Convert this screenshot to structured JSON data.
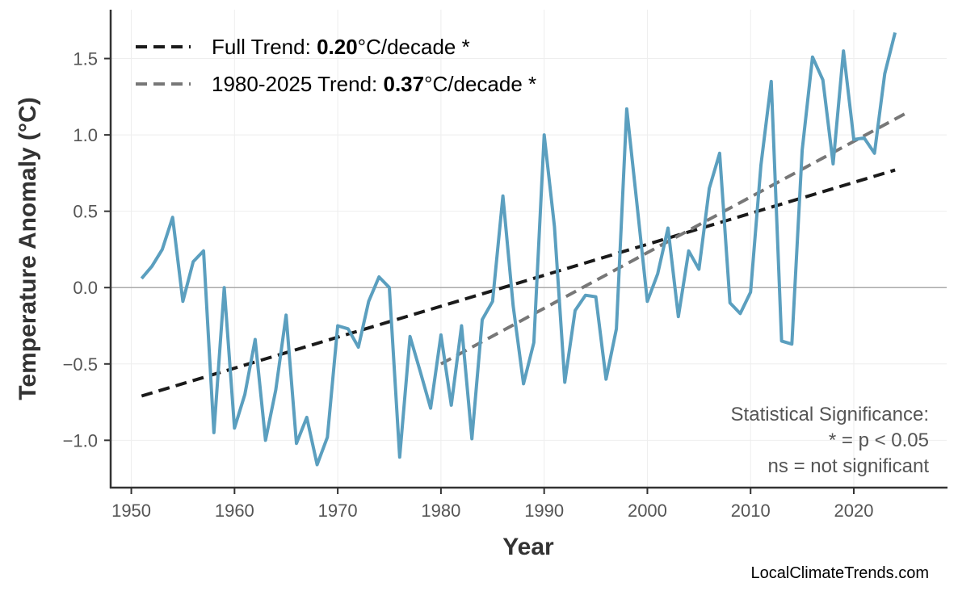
{
  "chart_data": {
    "type": "line",
    "xlabel": "Year",
    "ylabel": "Temperature Anomaly (°C)",
    "xlim": [
      1948,
      2029
    ],
    "ylim": [
      -1.31,
      1.82
    ],
    "xticks": [
      1950,
      1960,
      1970,
      1980,
      1990,
      2000,
      2010,
      2020
    ],
    "yticks": [
      -1.0,
      -0.5,
      0.0,
      0.5,
      1.0,
      1.5
    ],
    "ytick_labels": [
      "−1.0",
      "−0.5",
      "0.0",
      "0.5",
      "1.0",
      "1.5"
    ],
    "grid": true,
    "zero_line": true,
    "series": [
      {
        "color": "#5b9fbf",
        "x": [
          1951,
          1952,
          1953,
          1954,
          1955,
          1956,
          1957,
          1958,
          1959,
          1960,
          1961,
          1962,
          1963,
          1964,
          1965,
          1966,
          1967,
          1968,
          1969,
          1970,
          1971,
          1972,
          1973,
          1974,
          1975,
          1976,
          1977,
          1978,
          1979,
          1980,
          1981,
          1982,
          1983,
          1984,
          1985,
          1986,
          1987,
          1988,
          1989,
          1990,
          1991,
          1992,
          1993,
          1994,
          1995,
          1996,
          1997,
          1998,
          1999,
          2000,
          2001,
          2002,
          2003,
          2004,
          2005,
          2006,
          2007,
          2008,
          2009,
          2010,
          2011,
          2012,
          2013,
          2014,
          2015,
          2016,
          2017,
          2018,
          2019,
          2020,
          2021,
          2022,
          2023,
          2024
        ],
        "y": [
          0.06,
          0.14,
          0.25,
          0.46,
          -0.09,
          0.17,
          0.24,
          -0.95,
          0.0,
          -0.92,
          -0.7,
          -0.34,
          -1.0,
          -0.67,
          -0.18,
          -1.02,
          -0.85,
          -1.16,
          -0.98,
          -0.25,
          -0.27,
          -0.39,
          -0.09,
          0.07,
          0.0,
          -1.11,
          -0.32,
          -0.55,
          -0.79,
          -0.31,
          -0.77,
          -0.25,
          -0.99,
          -0.21,
          -0.09,
          0.6,
          -0.12,
          -0.63,
          -0.36,
          1.0,
          0.4,
          -0.62,
          -0.15,
          -0.05,
          -0.06,
          -0.6,
          -0.27,
          1.17,
          0.54,
          -0.09,
          0.09,
          0.39,
          -0.19,
          0.24,
          0.12,
          0.65,
          0.88,
          -0.1,
          -0.17,
          -0.03,
          0.8,
          1.35,
          -0.35,
          -0.37,
          0.9,
          1.51,
          1.36,
          0.81,
          1.55,
          0.97,
          0.98,
          0.88,
          1.4,
          1.67
        ]
      }
    ],
    "trends": [
      {
        "label_prefix": "Full Trend: ",
        "value": "0.20",
        "label_suffix": "°C/decade *",
        "color": "#1a1a1a",
        "x": [
          1951,
          2024
        ],
        "y": [
          -0.71,
          0.77
        ]
      },
      {
        "label_prefix": "1980-2025 Trend: ",
        "value": "0.37",
        "label_suffix": "°C/decade *",
        "color": "#777777",
        "x": [
          1980,
          2025
        ],
        "y": [
          -0.5,
          1.14
        ]
      }
    ],
    "legend_position": "top-left",
    "annotation": [
      "Statistical Significance:",
      "* = p < 0.05",
      "ns = not significant"
    ],
    "source": "LocalClimateTrends.com"
  }
}
